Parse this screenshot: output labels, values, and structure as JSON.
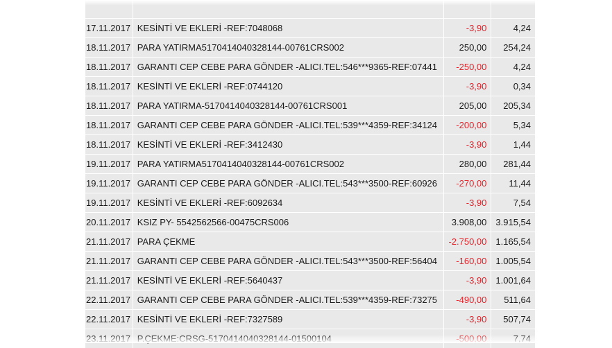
{
  "colors": {
    "row_bg": "#e9e9ea",
    "negative": "#e0252b",
    "text": "#1a1a1a"
  },
  "rows": [
    {
      "date": "",
      "desc": "",
      "amount": "",
      "balance": "",
      "negative": false
    },
    {
      "date": "17.11.2017",
      "desc": "KESİNTİ VE EKLERİ -REF:7048068",
      "amount": "-3,90",
      "balance": "4,24",
      "negative": true
    },
    {
      "date": "18.11.2017",
      "desc": "PARA YATIRMA5170414040328144-00761CRS002",
      "amount": "250,00",
      "balance": "254,24",
      "negative": false
    },
    {
      "date": "18.11.2017",
      "desc": "GARANTI CEP CEBE PARA GÖNDER -ALICI.TEL:546***9365-REF:07441",
      "amount": "-250,00",
      "balance": "4,24",
      "negative": true
    },
    {
      "date": "18.11.2017",
      "desc": "KESİNTİ VE EKLERİ -REF:0744120",
      "amount": "-3,90",
      "balance": "0,34",
      "negative": true
    },
    {
      "date": "18.11.2017",
      "desc": "PARA YATIRMA-5170414040328144-00761CRS001",
      "amount": "205,00",
      "balance": "205,34",
      "negative": false
    },
    {
      "date": "18.11.2017",
      "desc": "GARANTI CEP CEBE PARA GÖNDER -ALICI.TEL:539***4359-REF:34124",
      "amount": "-200,00",
      "balance": "5,34",
      "negative": true
    },
    {
      "date": "18.11.2017",
      "desc": "KESİNTİ VE EKLERİ -REF:3412430",
      "amount": "-3,90",
      "balance": "1,44",
      "negative": true
    },
    {
      "date": "19.11.2017",
      "desc": "PARA YATIRMA5170414040328144-00761CRS002",
      "amount": "280,00",
      "balance": "281,44",
      "negative": false
    },
    {
      "date": "19.11.2017",
      "desc": "GARANTI CEP CEBE PARA GÖNDER -ALICI.TEL:543***3500-REF:60926",
      "amount": "-270,00",
      "balance": "11,44",
      "negative": true
    },
    {
      "date": "19.11.2017",
      "desc": "KESİNTİ VE EKLERİ -REF:6092634",
      "amount": "-3,90",
      "balance": "7,54",
      "negative": true
    },
    {
      "date": "20.11.2017",
      "desc": "KSIZ PY- 5542562566-00475CRS006",
      "amount": "3.908,00",
      "balance": "3.915,54",
      "negative": false
    },
    {
      "date": "21.11.2017",
      "desc": "PARA ÇEKME",
      "amount": "-2.750,00",
      "balance": "1.165,54",
      "negative": true
    },
    {
      "date": "21.11.2017",
      "desc": "GARANTI CEP CEBE PARA GÖNDER -ALICI.TEL:543***3500-REF:56404",
      "amount": "-160,00",
      "balance": "1.005,54",
      "negative": true
    },
    {
      "date": "21.11.2017",
      "desc": "KESİNTİ VE EKLERİ -REF:5640437",
      "amount": "-3,90",
      "balance": "1.001,64",
      "negative": true
    },
    {
      "date": "22.11.2017",
      "desc": "GARANTI CEP CEBE PARA GÖNDER -ALICI.TEL:539***4359-REF:73275",
      "amount": "-490,00",
      "balance": "511,64",
      "negative": true
    },
    {
      "date": "22.11.2017",
      "desc": "KESİNTİ VE EKLERİ -REF:7327589",
      "amount": "-3,90",
      "balance": "507,74",
      "negative": true
    },
    {
      "date": "23.11.2017",
      "desc": "P.ÇEKME:CRSG-5170414040328144-01500104",
      "amount": "-500,00",
      "balance": "7,74",
      "negative": true
    }
  ]
}
